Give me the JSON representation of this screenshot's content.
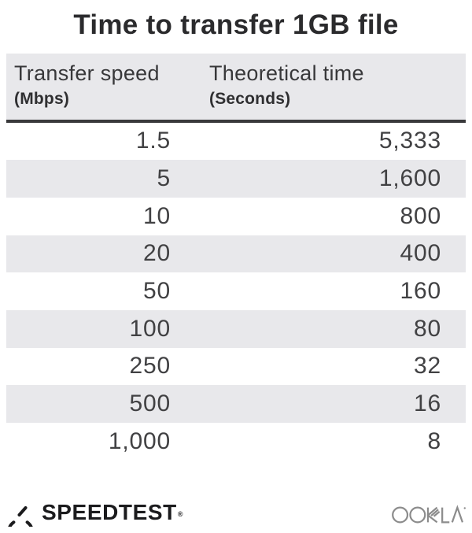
{
  "title": "Time to transfer 1GB file",
  "table": {
    "columns": [
      {
        "label": "Transfer speed",
        "unit": "(Mbps)"
      },
      {
        "label": "Theoretical time",
        "unit": "(Seconds)"
      }
    ],
    "rows": [
      {
        "speed": "1.5",
        "time": "5,333"
      },
      {
        "speed": "5",
        "time": "1,600"
      },
      {
        "speed": "10",
        "time": "800"
      },
      {
        "speed": "20",
        "time": "400"
      },
      {
        "speed": "50",
        "time": "160"
      },
      {
        "speed": "100",
        "time": "80"
      },
      {
        "speed": "250",
        "time": "32"
      },
      {
        "speed": "500",
        "time": "16"
      },
      {
        "speed": "1,000",
        "time": "8"
      }
    ]
  },
  "footer": {
    "speedtest_label": "SPEEDTEST",
    "speedtest_reg": "®",
    "ookla_label": "OOKLA"
  },
  "colors": {
    "header_bg": "#e8e8eb",
    "row_alt_bg": "#e8e8eb",
    "rule": "#39393b",
    "title_text": "#2b2b2d",
    "number_text": "#414143",
    "speedtest_black": "#1b1b1d",
    "ookla_gray": "#8c8c8c"
  },
  "chart_data": {
    "type": "table",
    "title": "Time to transfer 1GB file",
    "columns": [
      "Transfer speed (Mbps)",
      "Theoretical time (Seconds)"
    ],
    "rows": [
      [
        1.5,
        5333
      ],
      [
        5,
        1600
      ],
      [
        10,
        800
      ],
      [
        20,
        400
      ],
      [
        50,
        160
      ],
      [
        100,
        80
      ],
      [
        250,
        32
      ],
      [
        500,
        16
      ],
      [
        1000,
        8
      ]
    ],
    "layout_hints": {
      "alternating_row_shading": true,
      "numbers_right_aligned": true
    }
  }
}
